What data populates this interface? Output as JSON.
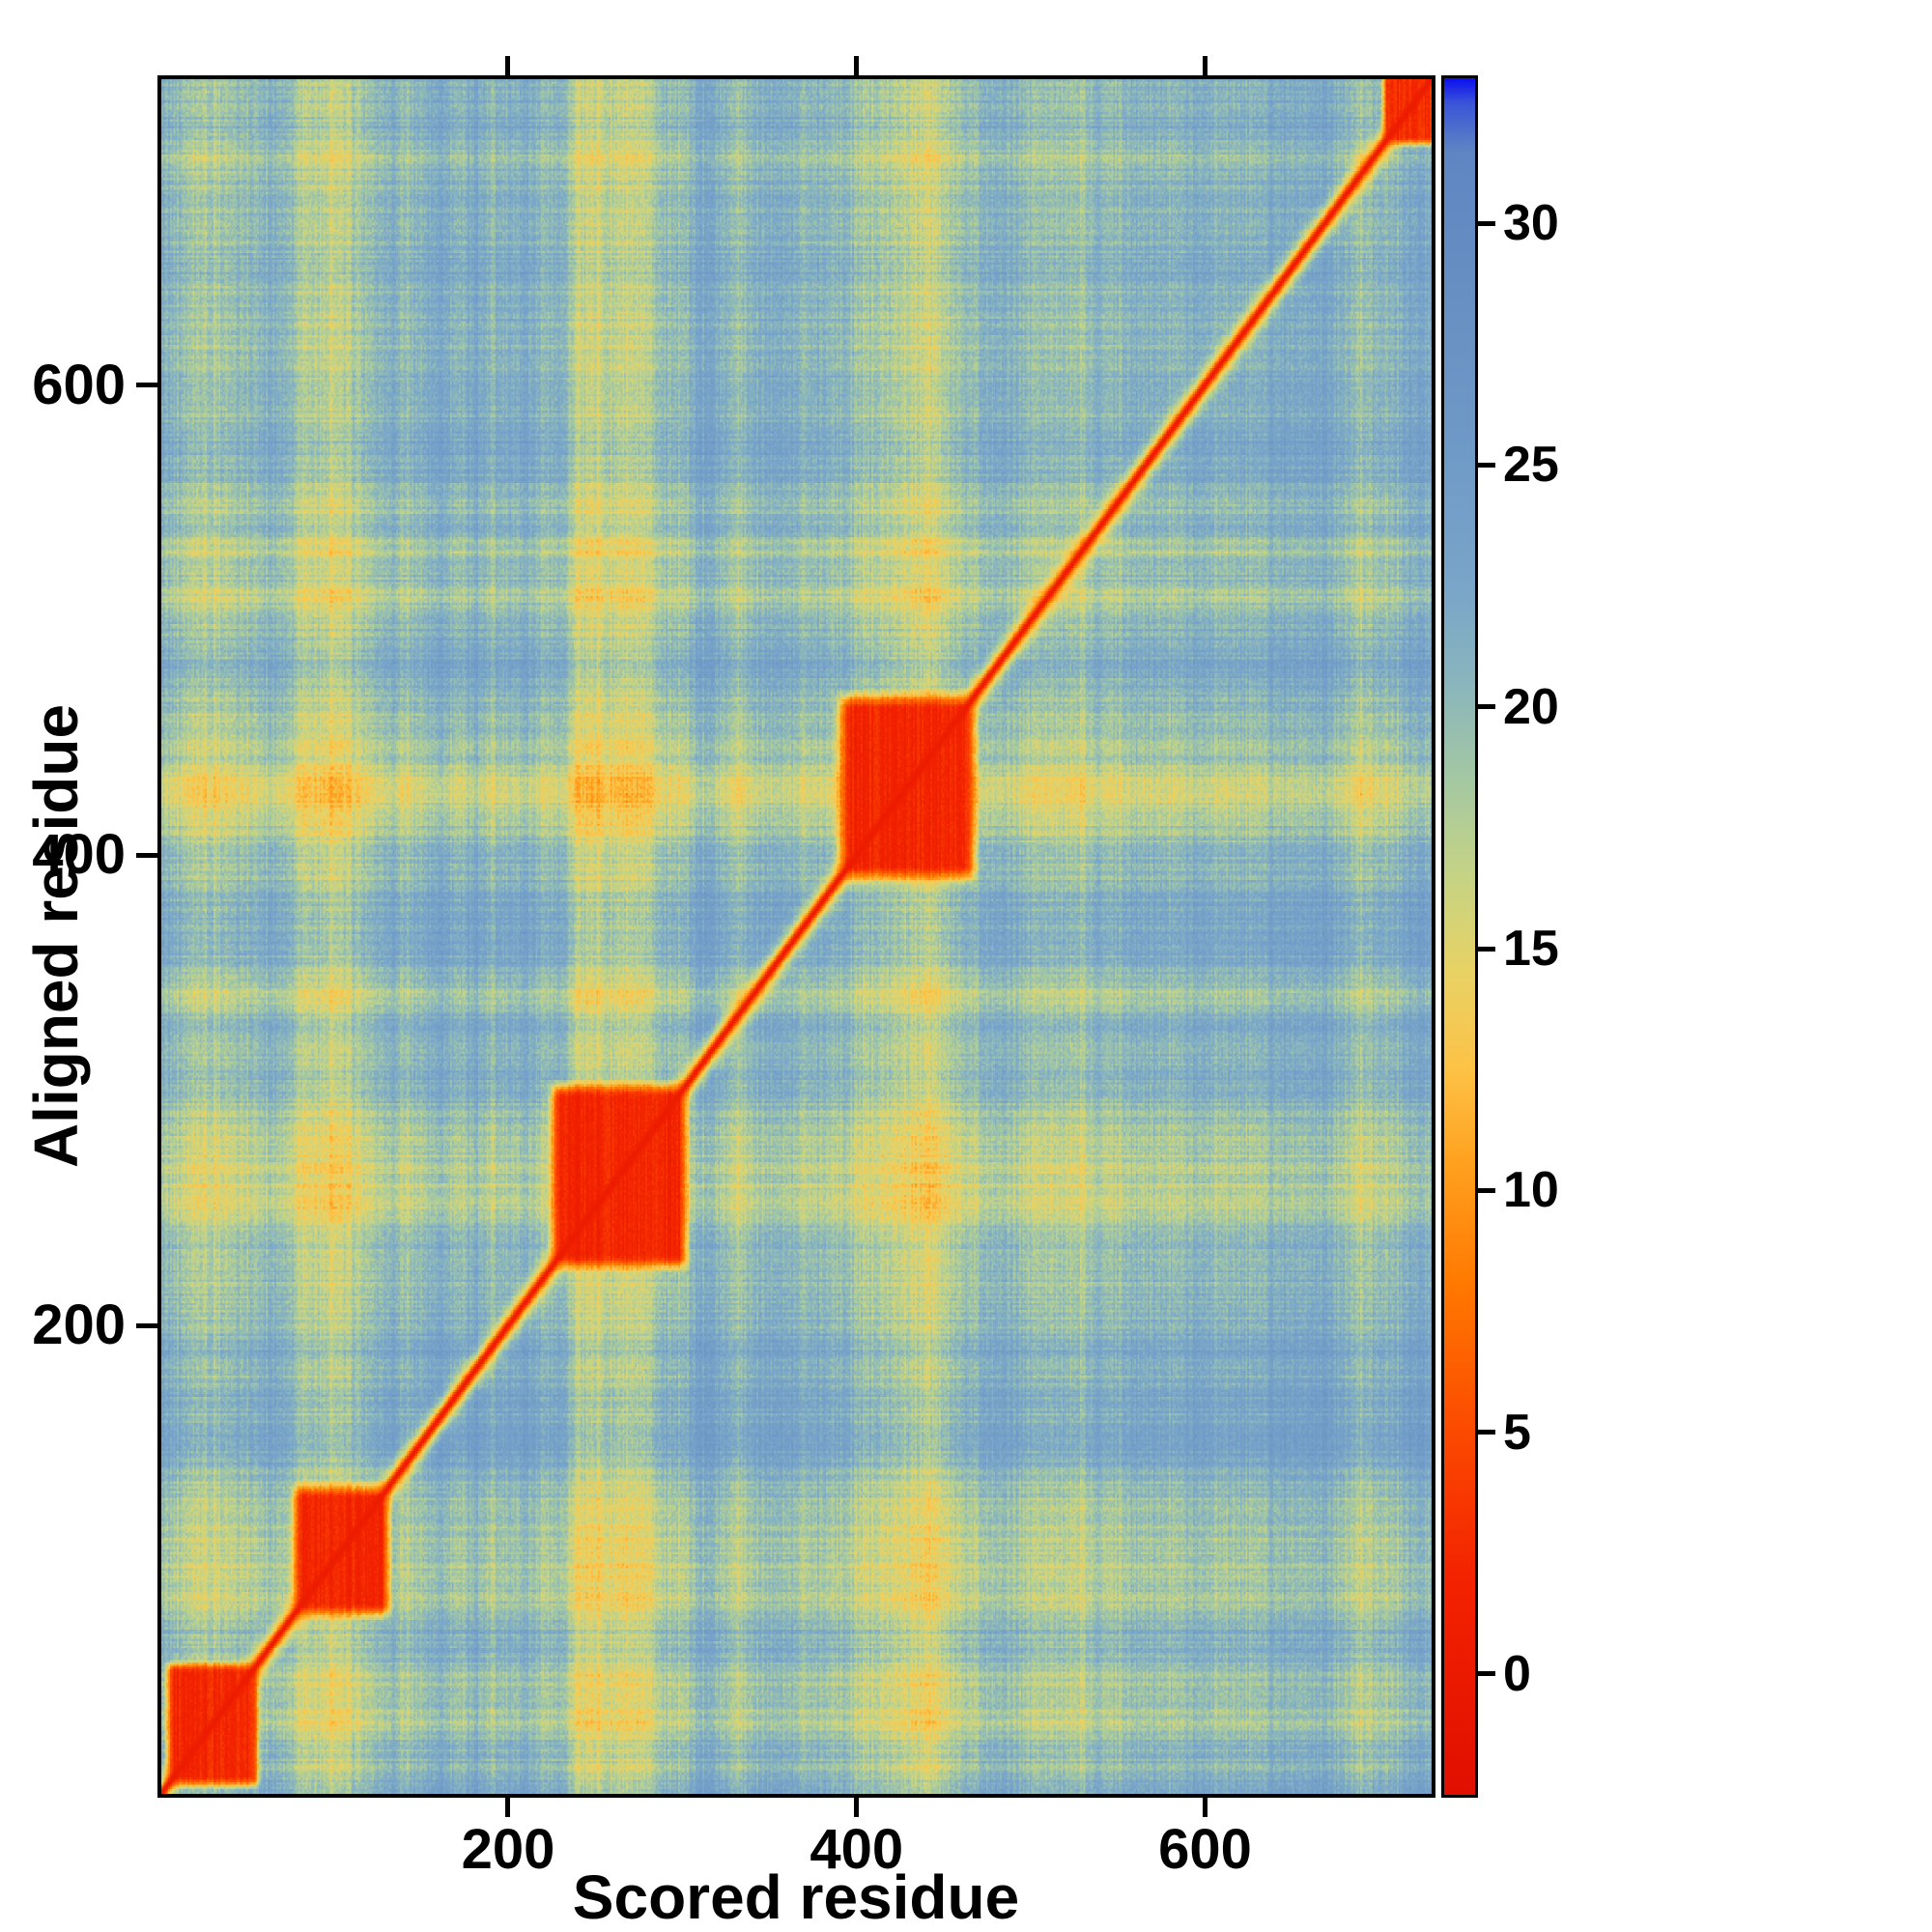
{
  "figure": {
    "xlabel": "Scored residue",
    "ylabel": "Aligned residue"
  },
  "chart_data": {
    "type": "heatmap",
    "title": "",
    "xlabel": "Scored residue",
    "ylabel": "Aligned residue",
    "x_range": [
      1,
      730
    ],
    "y_range": [
      1,
      730
    ],
    "x_ticks": [
      200,
      400,
      600
    ],
    "y_ticks": [
      200,
      400,
      600
    ],
    "grid": false,
    "legend_position": "right-colorbar",
    "colorbar_ticks": [
      0,
      5,
      10,
      15,
      20,
      25,
      30
    ],
    "colorbar_range": [
      -2.5,
      33
    ],
    "matrix_size": 730,
    "background_value": 22.5,
    "diagonal_value": 0.3,
    "diagonal_blocks": [
      {
        "start": 8,
        "end": 52,
        "value": 1.6,
        "fuzz": 7
      },
      {
        "start": 82,
        "end": 126,
        "value": 1.4,
        "fuzz": 9
      },
      {
        "start": 230,
        "end": 297,
        "value": 1.3,
        "fuzz": 9
      },
      {
        "start": 396,
        "end": 462,
        "value": 1.4,
        "fuzz": 10
      },
      {
        "start": 706,
        "end": 730,
        "value": 2.0,
        "fuzz": 6
      }
    ],
    "streaks": [
      {
        "center": 35,
        "width": 20,
        "strength": 3.0
      },
      {
        "center": 100,
        "width": 26,
        "strength": 4.5
      },
      {
        "center": 263,
        "width": 33,
        "strength": 5.5
      },
      {
        "center": 340,
        "width": 12,
        "strength": 2.0
      },
      {
        "center": 432,
        "width": 26,
        "strength": 5.0
      },
      {
        "center": 520,
        "width": 34,
        "strength": 2.6
      },
      {
        "center": 610,
        "width": 13,
        "strength": 1.8
      },
      {
        "center": 688,
        "width": 16,
        "strength": 2.2
      }
    ],
    "colormap_stops": [
      [
        -2.5,
        "#e00f00"
      ],
      [
        2.0,
        "#f32300"
      ],
      [
        5.0,
        "#fb4a00"
      ],
      [
        8.0,
        "#ff7800"
      ],
      [
        10.5,
        "#ffa01e"
      ],
      [
        12.5,
        "#fdc246"
      ],
      [
        14.5,
        "#e8d264"
      ],
      [
        16.5,
        "#c6d384"
      ],
      [
        18.5,
        "#a4c8a2"
      ],
      [
        20.5,
        "#8ab5bd"
      ],
      [
        22.5,
        "#79a5c9"
      ],
      [
        25.0,
        "#6f9bc7"
      ],
      [
        28.0,
        "#6991c2"
      ],
      [
        31.5,
        "#5f86c2"
      ],
      [
        32.5,
        "#3b55d8"
      ],
      [
        33.0,
        "#0d12ef"
      ]
    ],
    "noise": {
      "column": 1.2,
      "row": 1.2,
      "cell": 1.3,
      "coarse": 1.5
    },
    "seed": 42
  }
}
